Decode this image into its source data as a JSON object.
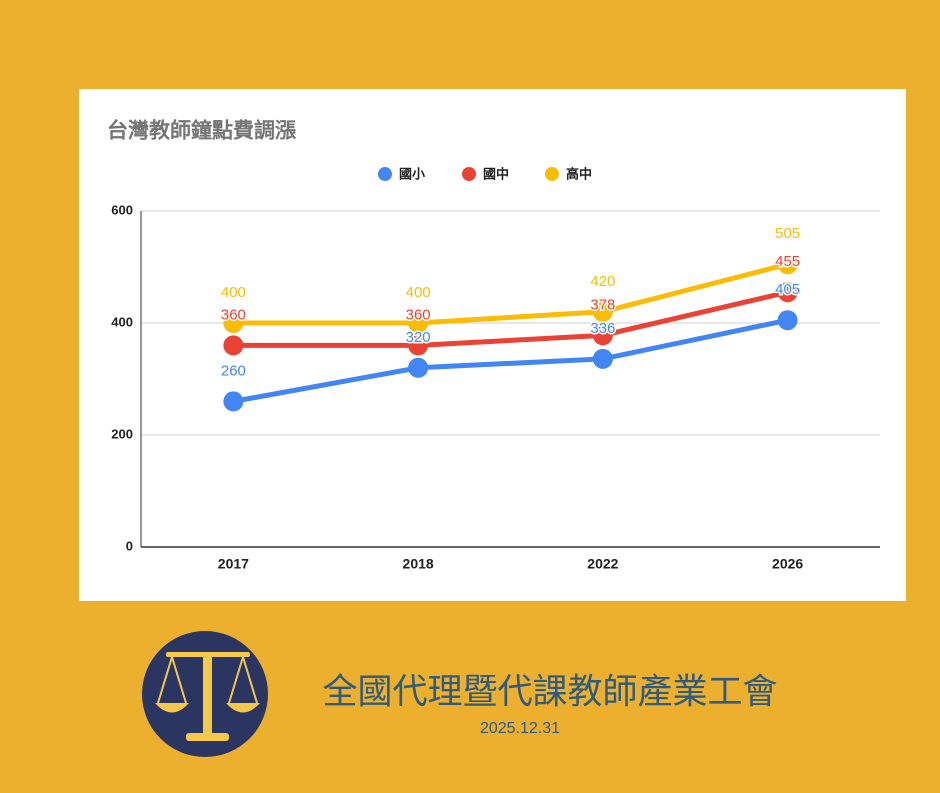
{
  "chart_data": {
    "type": "line",
    "title": "台灣教師鐘點費調漲",
    "categories": [
      "2017",
      "2018",
      "2022",
      "2026"
    ],
    "series": [
      {
        "name": "國小",
        "color": "#4285f4",
        "values": [
          260,
          320,
          336,
          405
        ]
      },
      {
        "name": "國中",
        "color": "#ea4335",
        "values": [
          360,
          360,
          378,
          455
        ]
      },
      {
        "name": "高中",
        "color": "#fbbc04",
        "values": [
          400,
          400,
          420,
          505
        ]
      }
    ],
    "ylim": [
      0,
      600
    ],
    "yticks": [
      0,
      200,
      400,
      600
    ],
    "grid": true,
    "legend": "top"
  },
  "footer": {
    "organization": "全國代理暨代課教師產業工會",
    "date": "2025.12.31"
  }
}
